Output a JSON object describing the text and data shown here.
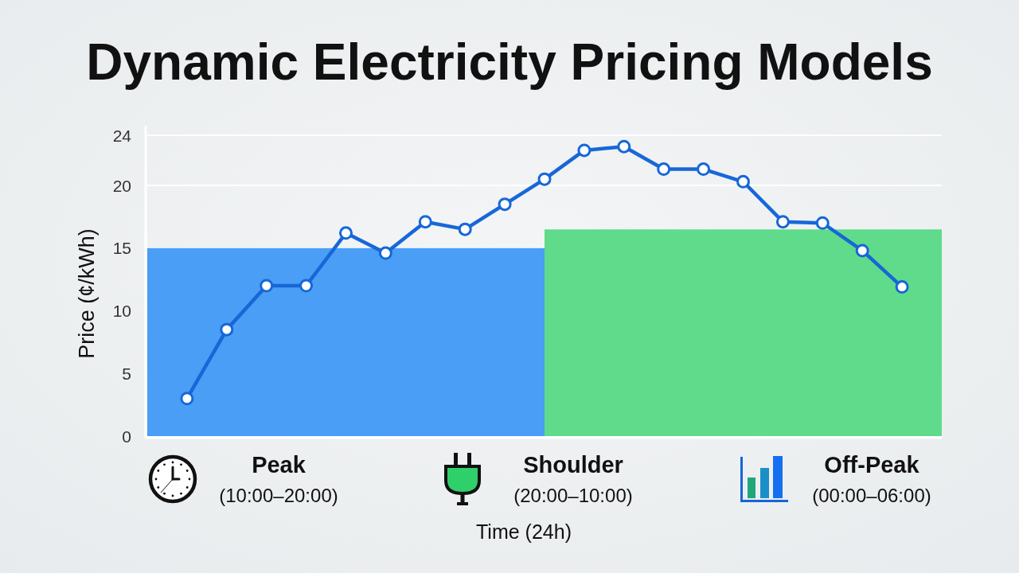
{
  "chart_data": {
    "type": "line",
    "title": "Dynamic Electricity Pricing Models",
    "xlabel": "Time (24h)",
    "ylabel": "Price (¢/kWh)",
    "categories": [
      null,
      null,
      null,
      null,
      null,
      null,
      null,
      null,
      null,
      null,
      null,
      null,
      null,
      null,
      null,
      null,
      null,
      null,
      null,
      null,
      null
    ],
    "series": [
      {
        "type": "area",
        "color": "#4a9ef5",
        "values": [
          15,
          15,
          15,
          15,
          15,
          15,
          15,
          15,
          15,
          15,
          15,
          null,
          null,
          null,
          null,
          null,
          null,
          null,
          null,
          null,
          null
        ]
      },
      {
        "type": "area",
        "color": "#5fdb8b",
        "values": [
          null,
          null,
          null,
          null,
          null,
          null,
          null,
          null,
          null,
          null,
          16.5,
          16.5,
          16.5,
          16.5,
          16.5,
          16.5,
          16.5,
          16.5,
          16.5,
          16.5,
          16.5
        ]
      },
      {
        "color": "#1767d8",
        "marker": "circle",
        "values": [
          null,
          3,
          8.5,
          12,
          12,
          16.2,
          14.6,
          17.1,
          16.5,
          18.5,
          20.5,
          22.8,
          23.1,
          21.3,
          21.3,
          20.3,
          17.1,
          17,
          14.8,
          11.9,
          null
        ]
      }
    ],
    "ylim": [
      0,
      24
    ],
    "yticks": [
      0,
      5,
      10,
      15,
      20,
      24
    ],
    "grid": "y",
    "annotations": [
      "Peak",
      "(10:00–20:00)",
      "Shoulder",
      "(20:00–10:00)",
      "Off-Peak",
      "(00:00–06:00)"
    ]
  }
}
